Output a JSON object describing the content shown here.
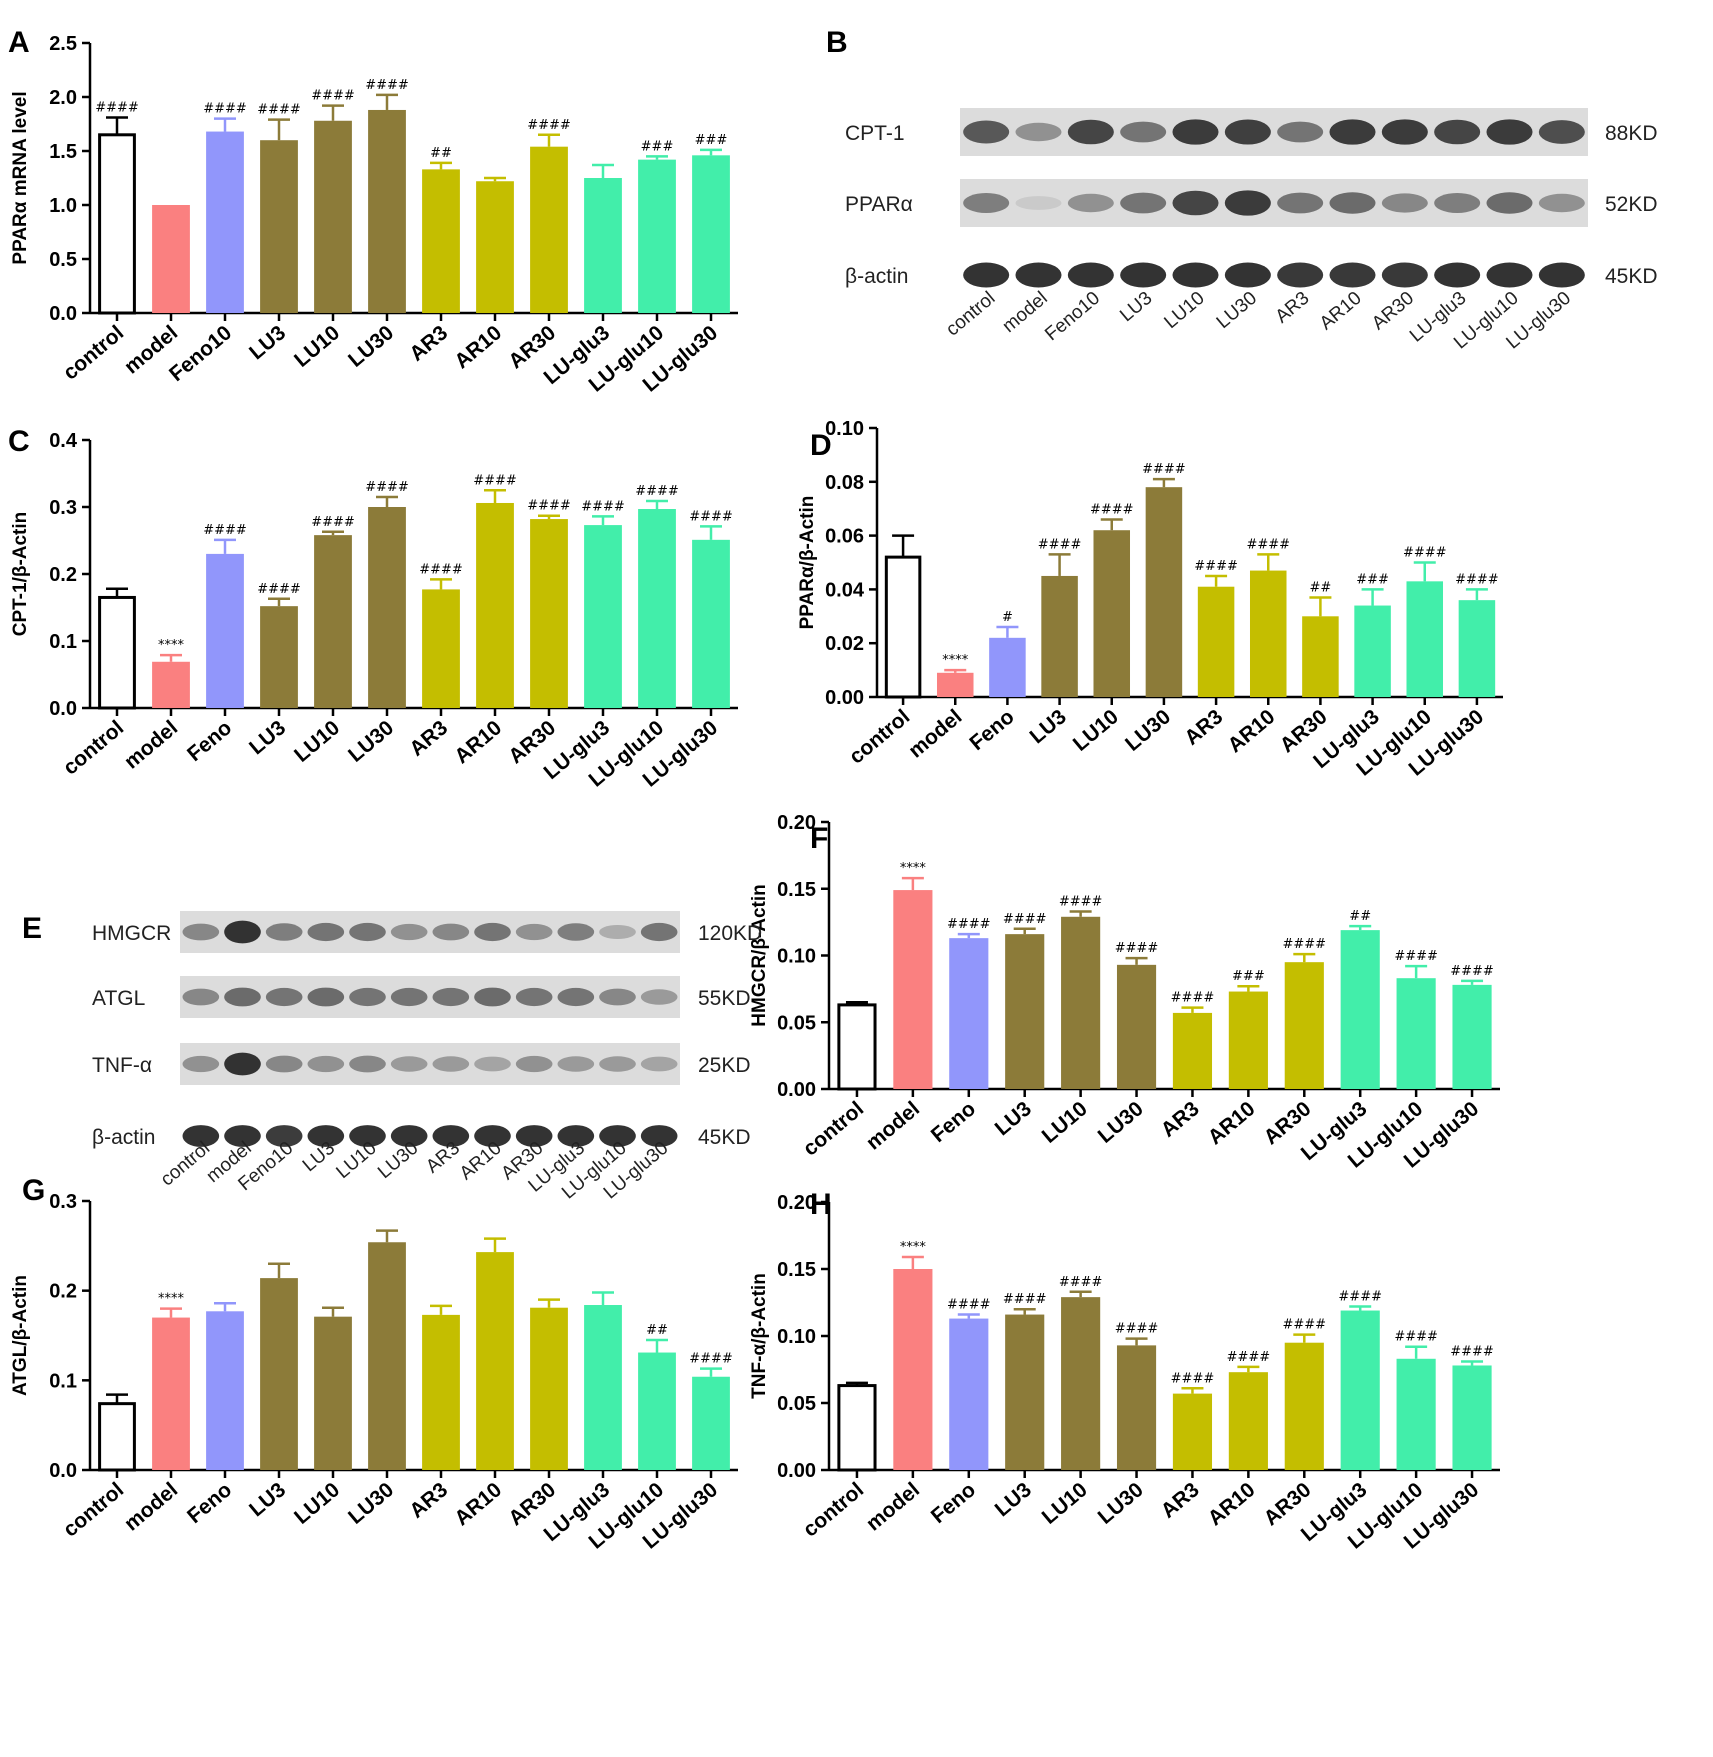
{
  "colors": {
    "control": "#ffffff",
    "model": "#fa8080",
    "Feno": "#9196fb",
    "LU": "#8c7b39",
    "AR": "#c4be00",
    "LU-glu": "#42eeaa"
  },
  "chart_data": [
    {
      "panel": "A",
      "type": "bar",
      "ylabel": "PPARα mRNA level",
      "ylim": [
        0,
        2.5
      ],
      "yticks": [
        "0.0",
        "0.5",
        "1.0",
        "1.5",
        "2.0",
        "2.5"
      ],
      "categories": [
        "control",
        "model",
        "Feno10",
        "LU3",
        "LU10",
        "LU30",
        "AR3",
        "AR10",
        "AR30",
        "LU-glu3",
        "LU-glu10",
        "LU-glu30"
      ],
      "values": [
        1.65,
        1.0,
        1.68,
        1.6,
        1.78,
        1.88,
        1.33,
        1.22,
        1.54,
        1.25,
        1.42,
        1.46
      ],
      "errors": [
        0.16,
        0,
        0.12,
        0.19,
        0.14,
        0.14,
        0.06,
        0.03,
        0.11,
        0.12,
        0.03,
        0.05
      ],
      "annotations": [
        "####",
        "",
        "####",
        "####",
        "####",
        "####",
        "##",
        "",
        "####",
        "",
        "###",
        "###"
      ]
    },
    {
      "panel": "C",
      "type": "bar",
      "ylabel": "CPT-1/β-Actin",
      "ylim": [
        0,
        0.4
      ],
      "yticks": [
        "0.0",
        "0.1",
        "0.2",
        "0.3",
        "0.4"
      ],
      "categories": [
        "control",
        "model",
        "Feno",
        "LU3",
        "LU10",
        "LU30",
        "AR3",
        "AR10",
        "AR30",
        "LU-glu3",
        "LU-glu10",
        "LU-glu30"
      ],
      "values": [
        0.165,
        0.069,
        0.23,
        0.152,
        0.258,
        0.3,
        0.177,
        0.306,
        0.282,
        0.273,
        0.297,
        0.251
      ],
      "errors": [
        0.013,
        0.01,
        0.021,
        0.011,
        0.005,
        0.015,
        0.015,
        0.019,
        0.005,
        0.013,
        0.012,
        0.02
      ],
      "annotations": [
        "",
        "****",
        "####",
        "####",
        "####",
        "####",
        "####",
        "####",
        "####",
        "####",
        "####",
        "####"
      ]
    },
    {
      "panel": "D",
      "type": "bar",
      "ylabel": "PPARα/β-Actin",
      "ylim": [
        0,
        0.1
      ],
      "yticks": [
        "0.00",
        "0.02",
        "0.04",
        "0.06",
        "0.08",
        "0.10"
      ],
      "categories": [
        "control",
        "model",
        "Feno",
        "LU3",
        "LU10",
        "LU30",
        "AR3",
        "AR10",
        "AR30",
        "LU-glu3",
        "LU-glu10",
        "LU-glu30"
      ],
      "values": [
        0.052,
        0.009,
        0.022,
        0.045,
        0.062,
        0.078,
        0.041,
        0.047,
        0.03,
        0.034,
        0.043,
        0.036
      ],
      "errors": [
        0.008,
        0.001,
        0.004,
        0.008,
        0.004,
        0.003,
        0.004,
        0.006,
        0.007,
        0.006,
        0.007,
        0.004
      ],
      "annotations": [
        "",
        "****",
        "#",
        "####",
        "####",
        "####",
        "####",
        "####",
        "##",
        "###",
        "####",
        "####"
      ]
    },
    {
      "panel": "F",
      "type": "bar",
      "ylabel": "HMGCR/β-Actin",
      "ylim": [
        0,
        0.2
      ],
      "yticks": [
        "0.00",
        "0.05",
        "0.10",
        "0.15",
        "0.20"
      ],
      "categories": [
        "control",
        "model",
        "Feno",
        "LU3",
        "LU10",
        "LU30",
        "AR3",
        "AR10",
        "AR30",
        "LU-glu3",
        "LU-glu10",
        "LU-glu30"
      ],
      "values": [
        0.063,
        0.149,
        0.113,
        0.116,
        0.129,
        0.093,
        0.057,
        0.073,
        0.095,
        0.119,
        0.083,
        0.078
      ],
      "errors": [
        0.002,
        0.009,
        0.003,
        0.004,
        0.004,
        0.005,
        0.004,
        0.004,
        0.006,
        0.003,
        0.009,
        0.003
      ],
      "annotations": [
        "",
        "****",
        "####",
        "####",
        "####",
        "####",
        "####",
        "###",
        "####",
        "##",
        "####",
        "####"
      ]
    },
    {
      "panel": "G",
      "type": "bar",
      "ylabel": "ATGL/β-Actin",
      "ylim": [
        0,
        0.3
      ],
      "yticks": [
        "0.0",
        "0.1",
        "0.2",
        "0.3"
      ],
      "categories": [
        "control",
        "model",
        "Feno",
        "LU3",
        "LU10",
        "LU30",
        "AR3",
        "AR10",
        "AR30",
        "LU-glu3",
        "LU-glu10",
        "LU-glu30"
      ],
      "values": [
        0.074,
        0.17,
        0.177,
        0.214,
        0.171,
        0.254,
        0.173,
        0.243,
        0.181,
        0.184,
        0.131,
        0.104
      ],
      "errors": [
        0.01,
        0.01,
        0.009,
        0.016,
        0.01,
        0.013,
        0.01,
        0.015,
        0.009,
        0.014,
        0.014,
        0.009
      ],
      "annotations": [
        "",
        "****",
        "",
        "",
        "",
        "",
        "",
        "",
        "",
        "",
        "##",
        "####"
      ]
    },
    {
      "panel": "H",
      "type": "bar",
      "ylabel": "TNF-α/β-Actin",
      "ylim": [
        0,
        0.2
      ],
      "yticks": [
        "0.00",
        "0.05",
        "0.10",
        "0.15",
        "0.20"
      ],
      "categories": [
        "control",
        "model",
        "Feno",
        "LU3",
        "LU10",
        "LU30",
        "AR3",
        "AR10",
        "AR30",
        "LU-glu3",
        "LU-glu10",
        "LU-glu30"
      ],
      "values": [
        0.063,
        0.15,
        0.113,
        0.116,
        0.129,
        0.093,
        0.057,
        0.073,
        0.095,
        0.119,
        0.083,
        0.078
      ],
      "errors": [
        0.002,
        0.009,
        0.003,
        0.004,
        0.004,
        0.005,
        0.004,
        0.004,
        0.006,
        0.003,
        0.009,
        0.003
      ],
      "annotations": [
        "",
        "****",
        "####",
        "####",
        "####",
        "####",
        "####",
        "####",
        "####",
        "####",
        "####",
        "####"
      ]
    }
  ],
  "blots": [
    {
      "panel": "B",
      "bands": [
        {
          "label": "CPT-1",
          "size": "88KD",
          "intensity": [
            0.75,
            0.45,
            0.85,
            0.6,
            0.9,
            0.88,
            0.6,
            0.9,
            0.9,
            0.85,
            0.9,
            0.8
          ]
        },
        {
          "label": "PPARα",
          "size": "52KD",
          "intensity": [
            0.55,
            0.15,
            0.45,
            0.6,
            0.85,
            0.9,
            0.6,
            0.65,
            0.5,
            0.55,
            0.65,
            0.45
          ]
        },
        {
          "label": "β-actin",
          "size": "45KD",
          "intensity": [
            0.95,
            0.95,
            0.95,
            0.95,
            0.95,
            0.95,
            0.92,
            0.92,
            0.92,
            0.95,
            0.95,
            0.95
          ]
        }
      ],
      "lanes": [
        "control",
        "model",
        "Feno10",
        "LU3",
        "LU10",
        "LU30",
        "AR3",
        "AR10",
        "AR30",
        "LU-glu3",
        "LU-glu10",
        "LU-glu30"
      ]
    },
    {
      "panel": "E",
      "bands": [
        {
          "label": "HMGCR",
          "size": "120KD",
          "intensity": [
            0.5,
            0.95,
            0.55,
            0.6,
            0.6,
            0.45,
            0.5,
            0.6,
            0.45,
            0.55,
            0.3,
            0.6
          ]
        },
        {
          "label": "ATGL",
          "size": "55KD",
          "intensity": [
            0.5,
            0.65,
            0.6,
            0.65,
            0.6,
            0.6,
            0.6,
            0.65,
            0.6,
            0.6,
            0.5,
            0.4
          ]
        },
        {
          "label": "TNF-α",
          "size": "25KD",
          "intensity": [
            0.45,
            0.95,
            0.5,
            0.45,
            0.5,
            0.4,
            0.4,
            0.35,
            0.45,
            0.4,
            0.4,
            0.35
          ]
        },
        {
          "label": "β-actin",
          "size": "45KD",
          "intensity": [
            0.95,
            0.95,
            0.9,
            0.95,
            0.95,
            0.95,
            0.95,
            0.95,
            0.95,
            0.95,
            0.95,
            0.95
          ]
        }
      ],
      "lanes": [
        "control",
        "model",
        "Feno10",
        "LU3",
        "LU10",
        "LU30",
        "AR3",
        "AR10",
        "AR30",
        "LU-glu3",
        "LU-glu10",
        "LU-glu30"
      ]
    }
  ],
  "panel_letters": [
    "A",
    "B",
    "C",
    "D",
    "E",
    "F",
    "G",
    "H"
  ]
}
